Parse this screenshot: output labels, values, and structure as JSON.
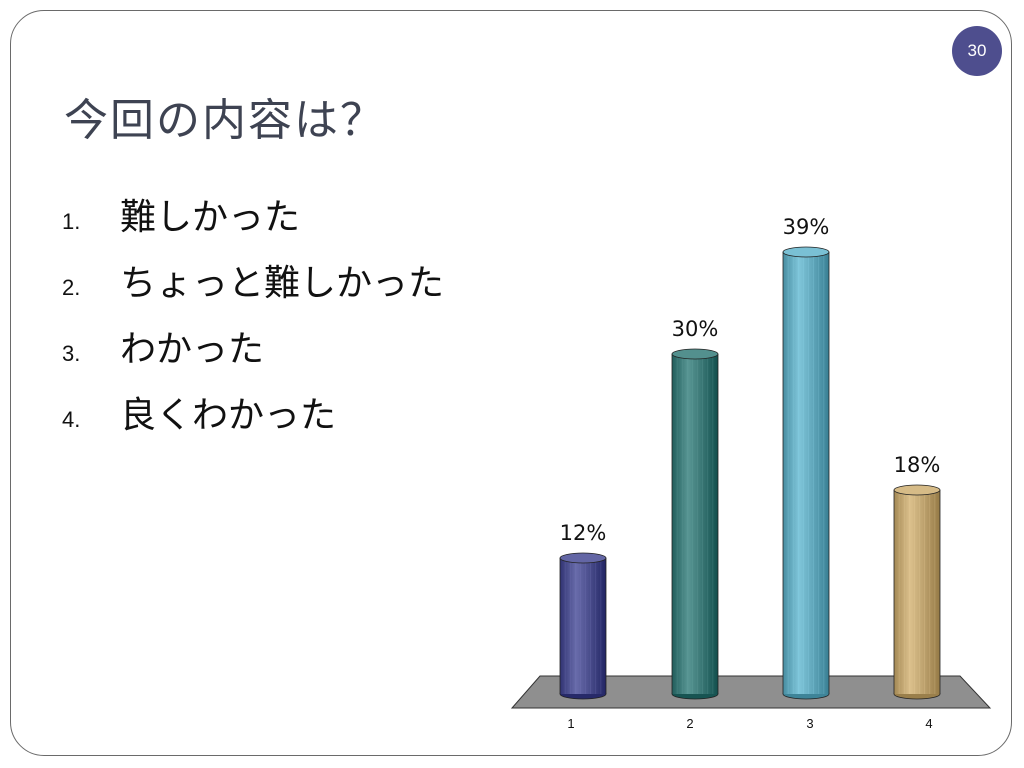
{
  "page_number": "30",
  "title": "今回の内容は？",
  "options": [
    {
      "num": "1.",
      "text": "難しかった"
    },
    {
      "num": "2.",
      "text": "ちょっと難しかった"
    },
    {
      "num": "3.",
      "text": "わかった"
    },
    {
      "num": "4.",
      "text": "良くわかった"
    }
  ],
  "chart_data": {
    "type": "bar",
    "style": "3d-cylinder",
    "categories": [
      "1",
      "2",
      "3",
      "4"
    ],
    "values": [
      12,
      30,
      39,
      18
    ],
    "data_labels": [
      "12%",
      "30%",
      "39%",
      "18%"
    ],
    "unit": "%",
    "ylim": [
      0,
      39
    ],
    "grid": false,
    "legend": "none",
    "colors": [
      "#4f5291",
      "#3f7c7a",
      "#66acc0",
      "#c2a773"
    ],
    "floor_color": "#8f8f8f"
  }
}
